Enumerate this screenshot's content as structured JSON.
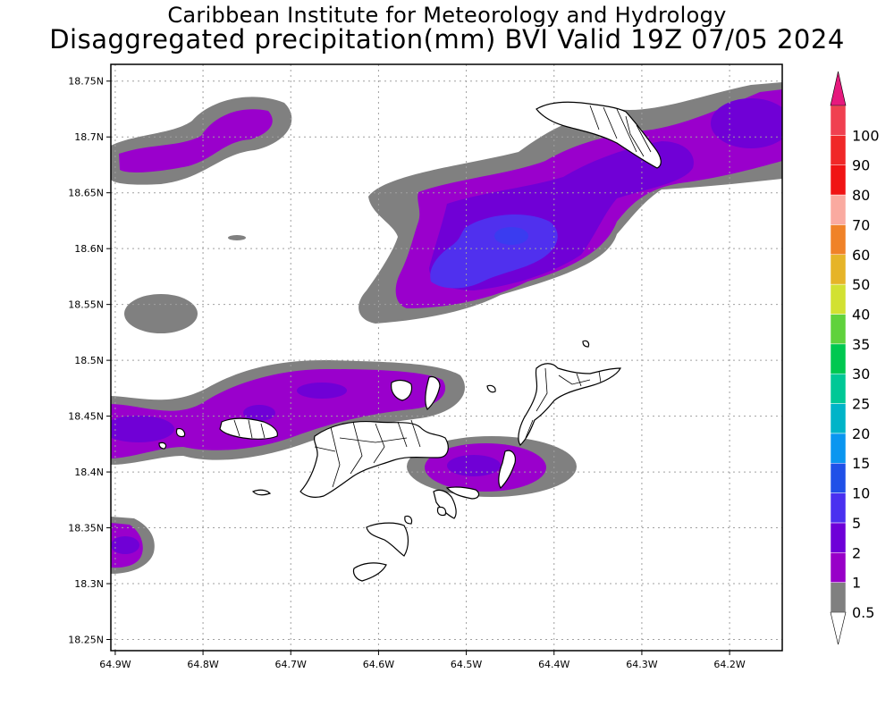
{
  "title_line1": "Caribbean Institute for Meteorology and Hydrology",
  "title_line2": "Disaggregated precipitation(mm) BVI Valid 19Z 07/05 2024",
  "map": {
    "lon_range": [
      -64.905,
      -64.14
    ],
    "lat_range": [
      18.24,
      18.765
    ],
    "lon_ticks": [
      {
        "value": -64.9,
        "label": "64.9W"
      },
      {
        "value": -64.8,
        "label": "64.8W"
      },
      {
        "value": -64.7,
        "label": "64.7W"
      },
      {
        "value": -64.6,
        "label": "64.6W"
      },
      {
        "value": -64.5,
        "label": "64.5W"
      },
      {
        "value": -64.4,
        "label": "64.4W"
      },
      {
        "value": -64.3,
        "label": "64.3W"
      },
      {
        "value": -64.2,
        "label": "64.2W"
      }
    ],
    "lat_ticks": [
      {
        "value": 18.75,
        "label": "18.75N"
      },
      {
        "value": 18.7,
        "label": "18.7N"
      },
      {
        "value": 18.65,
        "label": "18.65N"
      },
      {
        "value": 18.6,
        "label": "18.6N"
      },
      {
        "value": 18.55,
        "label": "18.55N"
      },
      {
        "value": 18.5,
        "label": "18.5N"
      },
      {
        "value": 18.45,
        "label": "18.45N"
      },
      {
        "value": 18.4,
        "label": "18.4N"
      },
      {
        "value": 18.35,
        "label": "18.35N"
      },
      {
        "value": 18.3,
        "label": "18.3N"
      },
      {
        "value": 18.25,
        "label": "18.25N"
      }
    ],
    "gridlines": "dotted"
  },
  "legend": {
    "bins": [
      {
        "label": "0.5",
        "color": "#808080"
      },
      {
        "label": "1",
        "color": "#9800c8"
      },
      {
        "label": "2",
        "color": "#6e00d8"
      },
      {
        "label": "5",
        "color": "#4a30f0"
      },
      {
        "label": "10",
        "color": "#2050e8"
      },
      {
        "label": "15",
        "color": "#0a96f0"
      },
      {
        "label": "20",
        "color": "#00b4c8"
      },
      {
        "label": "25",
        "color": "#00c896"
      },
      {
        "label": "30",
        "color": "#00c850"
      },
      {
        "label": "35",
        "color": "#60d23c"
      },
      {
        "label": "40",
        "color": "#d2e132"
      },
      {
        "label": "50",
        "color": "#e6b428"
      },
      {
        "label": "60",
        "color": "#f08228"
      },
      {
        "label": "70",
        "color": "#faaaa0"
      },
      {
        "label": "80",
        "color": "#f01414"
      },
      {
        "label": "90",
        "color": "#f02828"
      },
      {
        "label": "100",
        "color": "#f04050"
      }
    ],
    "top_arrow_color": "#e6197d",
    "bottom_arrow_color": "#ffffff"
  },
  "precip_colors": {
    "gray": "#808080",
    "purple1": "#9a00cc",
    "purple2": "#7000d6",
    "blue5": "#5030ee",
    "blue10": "#3a3cf0"
  }
}
